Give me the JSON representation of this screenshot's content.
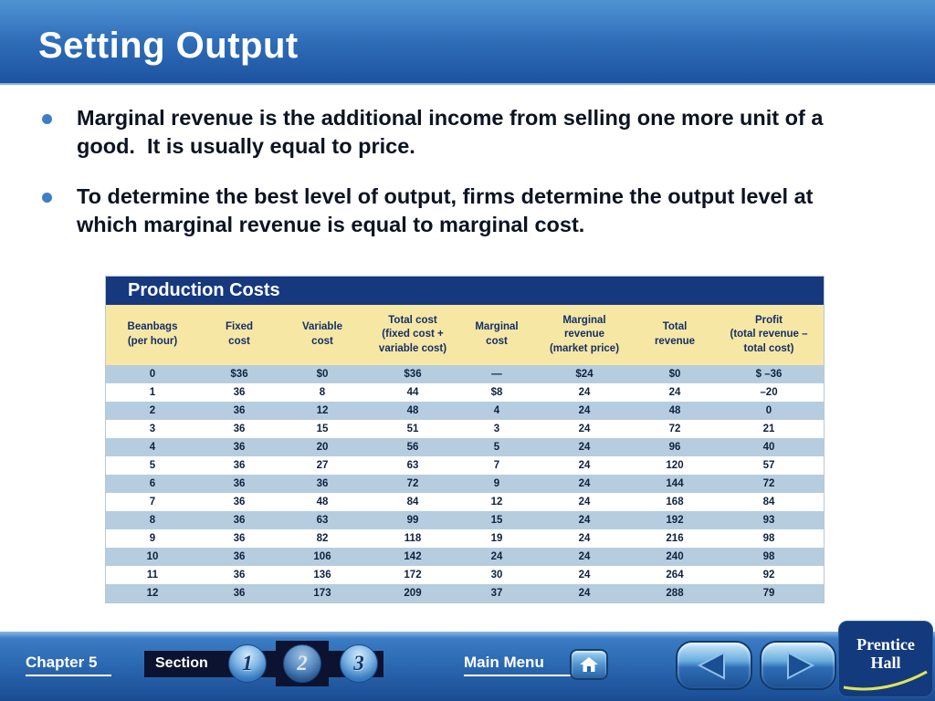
{
  "slide": {
    "title": "Setting Output",
    "bullets": [
      "Marginal revenue is the additional income from selling one more unit of a good.  It is usually equal to price.",
      "To determine the best level of output, firms determine the output level at which marginal revenue is equal to marginal cost."
    ]
  },
  "table": {
    "title": "Production Costs",
    "columns": [
      "Beanbags\n(per hour)",
      "Fixed\ncost",
      "Variable\ncost",
      "Total cost\n(fixed cost +\nvariable cost)",
      "Marginal\ncost",
      "Marginal\nrevenue\n(market price)",
      "Total\nrevenue",
      "Profit\n(total revenue –\ntotal cost)"
    ],
    "rows": [
      [
        "0",
        "$36",
        "$0",
        "$36",
        "—",
        "$24",
        "$0",
        "$ –36"
      ],
      [
        "1",
        "36",
        "8",
        "44",
        "$8",
        "24",
        "24",
        "–20"
      ],
      [
        "2",
        "36",
        "12",
        "48",
        "4",
        "24",
        "48",
        "0"
      ],
      [
        "3",
        "36",
        "15",
        "51",
        "3",
        "24",
        "72",
        "21"
      ],
      [
        "4",
        "36",
        "20",
        "56",
        "5",
        "24",
        "96",
        "40"
      ],
      [
        "5",
        "36",
        "27",
        "63",
        "7",
        "24",
        "120",
        "57"
      ],
      [
        "6",
        "36",
        "36",
        "72",
        "9",
        "24",
        "144",
        "72"
      ],
      [
        "7",
        "36",
        "48",
        "84",
        "12",
        "24",
        "168",
        "84"
      ],
      [
        "8",
        "36",
        "63",
        "99",
        "15",
        "24",
        "192",
        "93"
      ],
      [
        "9",
        "36",
        "82",
        "118",
        "19",
        "24",
        "216",
        "98"
      ],
      [
        "10",
        "36",
        "106",
        "142",
        "24",
        "24",
        "240",
        "98"
      ],
      [
        "11",
        "36",
        "136",
        "172",
        "30",
        "24",
        "264",
        "92"
      ],
      [
        "12",
        "36",
        "173",
        "209",
        "37",
        "24",
        "288",
        "79"
      ]
    ]
  },
  "footer": {
    "chapter_label": "Chapter 5",
    "section_label": "Section",
    "section_buttons": [
      "1",
      "2",
      "3"
    ],
    "active_section": "2",
    "main_menu_label": "Main Menu",
    "logo": {
      "line1": "Prentice",
      "line2": "Hall"
    }
  },
  "colors": {
    "header_blue": "#2f6db8",
    "table_title_navy": "#16387e",
    "column_header_cream": "#f6e7a5",
    "row_stripe_blue": "#b6cddf",
    "footer_strip_dark": "#0b1330",
    "logo_navy": "#123a7c",
    "logo_swoosh_yellow": "#dce45c"
  }
}
